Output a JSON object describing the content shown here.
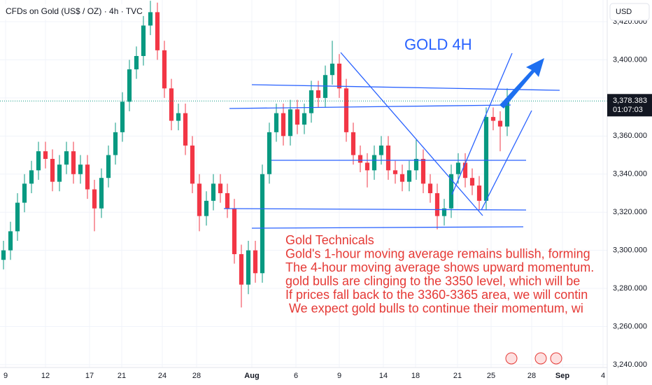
{
  "chart_data": {
    "type": "candlestick",
    "title": "CFDs on Gold (US$ / OZ) · 4h · TVC",
    "currency": "USD",
    "drawing_label": "GOLD 4H",
    "annotations": [
      "Gold Technicals",
      "Gold's 1-hour moving average remains bullish, forming",
      "The 4-hour moving average shows upward momentum.",
      "gold bulls are clinging to the 3350 level, which will be",
      "If prices fall back to the 3360-3365 area, we will contin",
      " We expect gold bulls to continue their momentum, wi"
    ],
    "last_price": {
      "value": 3378.383,
      "label": "3,378.383"
    },
    "countdown": "01:07:03",
    "up_color": "#089981",
    "down_color": "#f23645",
    "open": [
      3295,
      3300,
      3310,
      3325,
      3335,
      3342,
      3352,
      3348,
      3336,
      3345,
      3352,
      3340,
      3345,
      3332,
      3322,
      3338,
      3350,
      3362,
      3378,
      3395,
      3402,
      3418,
      3425,
      3405,
      3385,
      3368,
      3372,
      3355,
      3335,
      3318,
      3326,
      3335,
      3330,
      3322,
      3298,
      3282,
      3300,
      3288,
      3340,
      3362,
      3372,
      3360,
      3374,
      3366,
      3372,
      3384,
      3380,
      3392,
      3398,
      3385,
      3362,
      3350,
      3346,
      3342,
      3350,
      3355,
      3342,
      3340,
      3336,
      3342,
      3348,
      3335,
      3330,
      3318,
      3322,
      3340,
      3346,
      3338,
      3334,
      3326,
      3370,
      3368,
      3365
    ],
    "high": [
      3305,
      3315,
      3330,
      3340,
      3347,
      3357,
      3357,
      3353,
      3350,
      3357,
      3357,
      3350,
      3350,
      3337,
      3343,
      3355,
      3367,
      3383,
      3400,
      3407,
      3423,
      3431,
      3430,
      3410,
      3390,
      3377,
      3377,
      3360,
      3340,
      3331,
      3340,
      3340,
      3335,
      3327,
      3303,
      3305,
      3305,
      3345,
      3367,
      3377,
      3377,
      3379,
      3379,
      3377,
      3389,
      3389,
      3397,
      3410,
      3403,
      3390,
      3367,
      3355,
      3351,
      3355,
      3360,
      3360,
      3347,
      3345,
      3347,
      3358,
      3353,
      3340,
      3335,
      3327,
      3345,
      3351,
      3351,
      3343,
      3339,
      3375,
      3375,
      3373,
      3385
    ],
    "low": [
      3290,
      3295,
      3305,
      3320,
      3330,
      3337,
      3343,
      3331,
      3331,
      3340,
      3335,
      3335,
      3327,
      3310,
      3317,
      3333,
      3345,
      3357,
      3373,
      3390,
      3397,
      3413,
      3400,
      3380,
      3363,
      3363,
      3350,
      3330,
      3310,
      3313,
      3321,
      3325,
      3317,
      3293,
      3270,
      3277,
      3283,
      3283,
      3335,
      3357,
      3355,
      3355,
      3361,
      3361,
      3367,
      3375,
      3375,
      3387,
      3380,
      3357,
      3345,
      3341,
      3333,
      3337,
      3345,
      3337,
      3335,
      3331,
      3331,
      3337,
      3330,
      3325,
      3311,
      3313,
      3317,
      3335,
      3333,
      3329,
      3321,
      3321,
      3363,
      3352,
      3360
    ],
    "close": [
      3300,
      3310,
      3325,
      3335,
      3342,
      3352,
      3348,
      3336,
      3345,
      3352,
      3340,
      3345,
      3332,
      3322,
      3338,
      3350,
      3362,
      3378,
      3395,
      3402,
      3418,
      3425,
      3405,
      3385,
      3368,
      3372,
      3355,
      3335,
      3318,
      3326,
      3335,
      3330,
      3322,
      3298,
      3282,
      3300,
      3288,
      3340,
      3362,
      3372,
      3360,
      3374,
      3366,
      3372,
      3384,
      3380,
      3392,
      3398,
      3385,
      3362,
      3350,
      3346,
      3342,
      3350,
      3355,
      3342,
      3340,
      3336,
      3342,
      3348,
      3335,
      3330,
      3318,
      3322,
      3340,
      3346,
      3338,
      3334,
      3326,
      3370,
      3368,
      3365,
      3378
    ],
    "xlim": [
      -0.5,
      86.3
    ],
    "xticks": [
      {
        "value": 0.3,
        "label": "9"
      },
      {
        "value": 6,
        "label": "12"
      },
      {
        "value": 12.3,
        "label": "17"
      },
      {
        "value": 16.9,
        "label": "21"
      },
      {
        "value": 22.7,
        "label": "24"
      },
      {
        "value": 27.6,
        "label": "28"
      },
      {
        "value": 35.5,
        "label": "Aug"
      },
      {
        "value": 41.8,
        "label": "6"
      },
      {
        "value": 48,
        "label": "9"
      },
      {
        "value": 54.3,
        "label": "14"
      },
      {
        "value": 58.9,
        "label": "18"
      },
      {
        "value": 64.9,
        "label": "21"
      },
      {
        "value": 69.7,
        "label": "25"
      },
      {
        "value": 75.5,
        "label": "28"
      },
      {
        "value": 79.9,
        "label": "Sep"
      },
      {
        "value": 85.7,
        "label": "4"
      }
    ],
    "ylim": [
      3238.5,
      3431.4
    ],
    "yticks": [
      {
        "value": 3240,
        "label": "3,240.000"
      },
      {
        "value": 3260,
        "label": "3,260.000"
      },
      {
        "value": 3280,
        "label": "3,280.000"
      },
      {
        "value": 3300,
        "label": "3,300.000"
      },
      {
        "value": 3320,
        "label": "3,320.000"
      },
      {
        "value": 3340,
        "label": "3,340.000"
      },
      {
        "value": 3360,
        "label": "3,360.000"
      },
      {
        "value": 3380,
        "label": "3,380.000"
      },
      {
        "value": 3400,
        "label": "3,400.000"
      },
      {
        "value": 3420,
        "label": "3,420.000"
      }
    ],
    "grid": true
  }
}
